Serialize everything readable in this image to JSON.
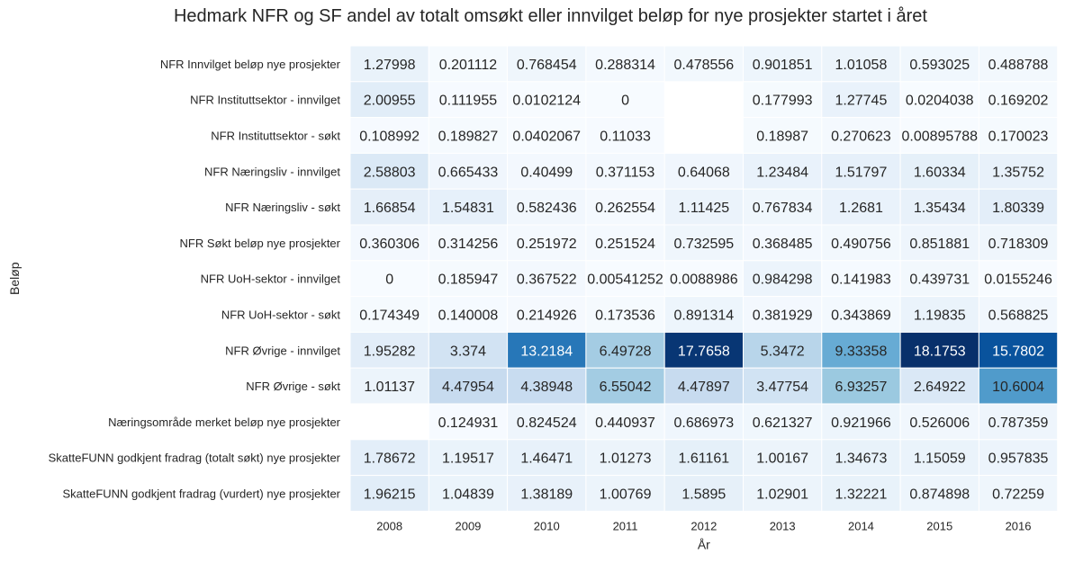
{
  "chart_data": {
    "type": "heatmap",
    "title": "Hedmark NFR og SF andel av totalt omsøkt eller innvilget beløp for nye prosjekter startet i året",
    "xlabel": "År",
    "ylabel": "Beløp",
    "colormap": "Blues",
    "color_range": [
      0,
      18.1753
    ],
    "x": [
      "2008",
      "2009",
      "2010",
      "2011",
      "2012",
      "2013",
      "2014",
      "2015",
      "2016"
    ],
    "y": [
      "NFR Innvilget beløp nye prosjekter",
      "NFR Instituttsektor - innvilget",
      "NFR Instituttsektor - søkt",
      "NFR Næringsliv - innvilget",
      "NFR Næringsliv - søkt",
      "NFR Søkt beløp nye prosjekter",
      "NFR UoH-sektor - innvilget",
      "NFR UoH-sektor - søkt",
      "NFR Øvrige - innvilget",
      "NFR Øvrige - søkt",
      "Næringsområde merket beløp nye prosjekter",
      "SkatteFUNN godkjent fradrag (totalt søkt) nye prosjekter",
      "SkatteFUNN godkjent fradrag (vurdert) nye prosjekter"
    ],
    "values": [
      [
        "1.27998",
        "0.201112",
        "0.768454",
        "0.288314",
        "0.478556",
        "0.901851",
        "1.01058",
        "0.593025",
        "0.488788"
      ],
      [
        "2.00955",
        "0.111955",
        "0.0102124",
        "0",
        null,
        "0.177993",
        "1.27745",
        "0.0204038",
        "0.169202"
      ],
      [
        "0.108992",
        "0.189827",
        "0.0402067",
        "0.11033",
        null,
        "0.18987",
        "0.270623",
        "0.00895788",
        "0.170023"
      ],
      [
        "2.58803",
        "0.665433",
        "0.40499",
        "0.371153",
        "0.64068",
        "1.23484",
        "1.51797",
        "1.60334",
        "1.35752"
      ],
      [
        "1.66854",
        "1.54831",
        "0.582436",
        "0.262554",
        "1.11425",
        "0.767834",
        "1.2681",
        "1.35434",
        "1.80339"
      ],
      [
        "0.360306",
        "0.314256",
        "0.251972",
        "0.251524",
        "0.732595",
        "0.368485",
        "0.490756",
        "0.851881",
        "0.718309"
      ],
      [
        "0",
        "0.185947",
        "0.367522",
        "0.00541252",
        "0.0088986",
        "0.984298",
        "0.141983",
        "0.439731",
        "0.0155246"
      ],
      [
        "0.174349",
        "0.140008",
        "0.214926",
        "0.173536",
        "0.891314",
        "0.381929",
        "0.343869",
        "1.19835",
        "0.568825"
      ],
      [
        "1.95282",
        "3.374",
        "13.2184",
        "6.49728",
        "17.7658",
        "5.3472",
        "9.33358",
        "18.1753",
        "15.7802"
      ],
      [
        "1.01137",
        "4.47954",
        "4.38948",
        "6.55042",
        "4.47897",
        "3.47754",
        "6.93257",
        "2.64922",
        "10.6004"
      ],
      [
        null,
        "0.124931",
        "0.824524",
        "0.440937",
        "0.686973",
        "0.621327",
        "0.921966",
        "0.526006",
        "0.787359"
      ],
      [
        "1.78672",
        "1.19517",
        "1.46471",
        "1.01273",
        "1.61161",
        "1.00167",
        "1.34673",
        "1.15059",
        "0.957835"
      ],
      [
        "1.96215",
        "1.04839",
        "1.38189",
        "1.00769",
        "1.5895",
        "1.02901",
        "1.32221",
        "0.874898",
        "0.72259"
      ]
    ],
    "grid": false,
    "legend": "none"
  }
}
